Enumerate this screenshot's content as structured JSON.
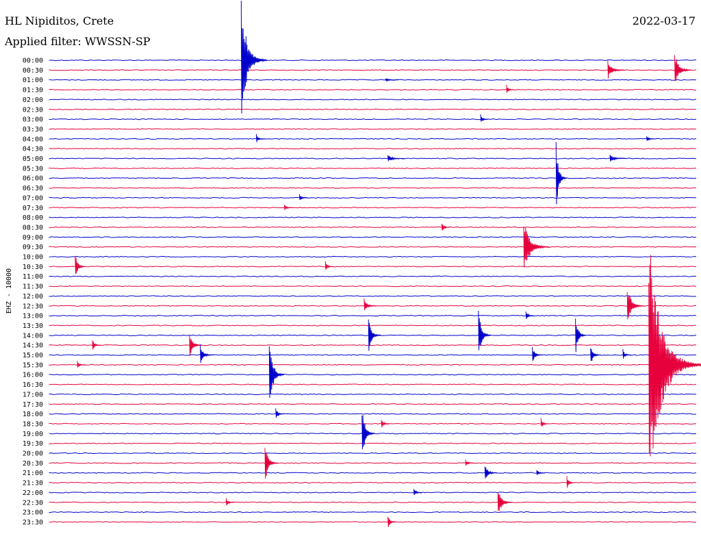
{
  "header": {
    "station": "HL Nipiditos, Crete",
    "filter": "Applied filter: WWSSN-SP",
    "date": "2022-03-17"
  },
  "chart_data": {
    "type": "line",
    "title": "HL Nipiditos, Crete",
    "subtitle": "Applied filter: WWSSN-SP",
    "ylabel": "EHZ - 10000",
    "date": "2022-03-17",
    "trace_colors": [
      "#0000cc",
      "#e6003c"
    ],
    "rows": [
      "00:00",
      "00:30",
      "01:00",
      "01:30",
      "02:00",
      "02:30",
      "03:00",
      "03:30",
      "04:00",
      "04:30",
      "05:00",
      "05:30",
      "06:00",
      "06:30",
      "07:00",
      "07:30",
      "08:00",
      "08:30",
      "09:00",
      "09:30",
      "10:00",
      "10:30",
      "11:00",
      "11:30",
      "12:00",
      "12:30",
      "13:00",
      "13:30",
      "14:00",
      "14:30",
      "15:00",
      "15:30",
      "16:00",
      "16:30",
      "17:00",
      "17:30",
      "18:00",
      "18:30",
      "19:00",
      "19:30",
      "20:00",
      "20:30",
      "21:00",
      "21:30",
      "22:00",
      "22:30",
      "23:00",
      "23:30"
    ],
    "events": [
      {
        "row": 0,
        "minute": 8.9,
        "amplitude": 6.2,
        "duration": 1.2
      },
      {
        "row": 1,
        "minute": 25.9,
        "amplitude": 1.0,
        "duration": 0.8
      },
      {
        "row": 1,
        "minute": 29.0,
        "amplitude": 2.0,
        "duration": 0.8
      },
      {
        "row": 2,
        "minute": 15.6,
        "amplitude": 0.2,
        "duration": 0.6
      },
      {
        "row": 3,
        "minute": 21.2,
        "amplitude": 0.5,
        "duration": 0.4
      },
      {
        "row": 6,
        "minute": 20.0,
        "amplitude": 0.5,
        "duration": 0.4
      },
      {
        "row": 8,
        "minute": 9.6,
        "amplitude": 0.5,
        "duration": 0.4
      },
      {
        "row": 8,
        "minute": 27.7,
        "amplitude": 0.4,
        "duration": 0.4
      },
      {
        "row": 10,
        "minute": 15.7,
        "amplitude": 0.4,
        "duration": 0.8
      },
      {
        "row": 10,
        "minute": 26.0,
        "amplitude": 0.4,
        "duration": 0.8
      },
      {
        "row": 12,
        "minute": 23.5,
        "amplitude": 3.8,
        "duration": 0.5
      },
      {
        "row": 14,
        "minute": 11.6,
        "amplitude": 0.4,
        "duration": 0.4
      },
      {
        "row": 15,
        "minute": 10.9,
        "amplitude": 0.4,
        "duration": 0.4
      },
      {
        "row": 17,
        "minute": 18.2,
        "amplitude": 0.6,
        "duration": 0.4
      },
      {
        "row": 19,
        "minute": 22.0,
        "amplitude": 3.0,
        "duration": 1.2
      },
      {
        "row": 21,
        "minute": 1.2,
        "amplitude": 1.4,
        "duration": 0.5
      },
      {
        "row": 21,
        "minute": 12.8,
        "amplitude": 0.6,
        "duration": 0.4
      },
      {
        "row": 25,
        "minute": 14.6,
        "amplitude": 0.8,
        "duration": 0.6
      },
      {
        "row": 25,
        "minute": 26.8,
        "amplitude": 2.3,
        "duration": 0.8
      },
      {
        "row": 26,
        "minute": 22.1,
        "amplitude": 0.6,
        "duration": 0.4
      },
      {
        "row": 28,
        "minute": 14.8,
        "amplitude": 2.0,
        "duration": 0.6
      },
      {
        "row": 28,
        "minute": 19.9,
        "amplitude": 3.0,
        "duration": 0.6
      },
      {
        "row": 28,
        "minute": 24.4,
        "amplitude": 2.5,
        "duration": 0.5
      },
      {
        "row": 29,
        "minute": 2.0,
        "amplitude": 0.7,
        "duration": 0.4
      },
      {
        "row": 29,
        "minute": 6.5,
        "amplitude": 1.6,
        "duration": 0.6
      },
      {
        "row": 30,
        "minute": 7.0,
        "amplitude": 1.2,
        "duration": 0.6
      },
      {
        "row": 30,
        "minute": 22.4,
        "amplitude": 0.9,
        "duration": 0.5
      },
      {
        "row": 30,
        "minute": 25.1,
        "amplitude": 1.2,
        "duration": 0.5
      },
      {
        "row": 30,
        "minute": 26.6,
        "amplitude": 0.6,
        "duration": 0.4
      },
      {
        "row": 31,
        "minute": 1.3,
        "amplitude": 0.4,
        "duration": 0.4
      },
      {
        "row": 31,
        "minute": 27.8,
        "amplitude": 14.0,
        "duration": 2.5
      },
      {
        "row": 32,
        "minute": 10.2,
        "amplitude": 4.3,
        "duration": 0.7
      },
      {
        "row": 36,
        "minute": 10.5,
        "amplitude": 0.8,
        "duration": 0.4
      },
      {
        "row": 37,
        "minute": 15.4,
        "amplitude": 0.6,
        "duration": 0.4
      },
      {
        "row": 37,
        "minute": 22.8,
        "amplitude": 0.6,
        "duration": 0.4
      },
      {
        "row": 38,
        "minute": 14.5,
        "amplitude": 3.1,
        "duration": 0.6
      },
      {
        "row": 41,
        "minute": 10.0,
        "amplitude": 2.5,
        "duration": 0.6
      },
      {
        "row": 41,
        "minute": 19.3,
        "amplitude": 0.4,
        "duration": 0.4
      },
      {
        "row": 42,
        "minute": 20.2,
        "amplitude": 1.0,
        "duration": 0.6
      },
      {
        "row": 42,
        "minute": 22.6,
        "amplitude": 0.4,
        "duration": 0.4
      },
      {
        "row": 43,
        "minute": 24.0,
        "amplitude": 0.7,
        "duration": 0.4
      },
      {
        "row": 44,
        "minute": 16.9,
        "amplitude": 0.6,
        "duration": 0.4
      },
      {
        "row": 45,
        "minute": 8.2,
        "amplitude": 0.5,
        "duration": 0.4
      },
      {
        "row": 45,
        "minute": 20.8,
        "amplitude": 1.7,
        "duration": 0.7
      },
      {
        "row": 47,
        "minute": 15.7,
        "amplitude": 0.8,
        "duration": 0.4
      }
    ]
  }
}
